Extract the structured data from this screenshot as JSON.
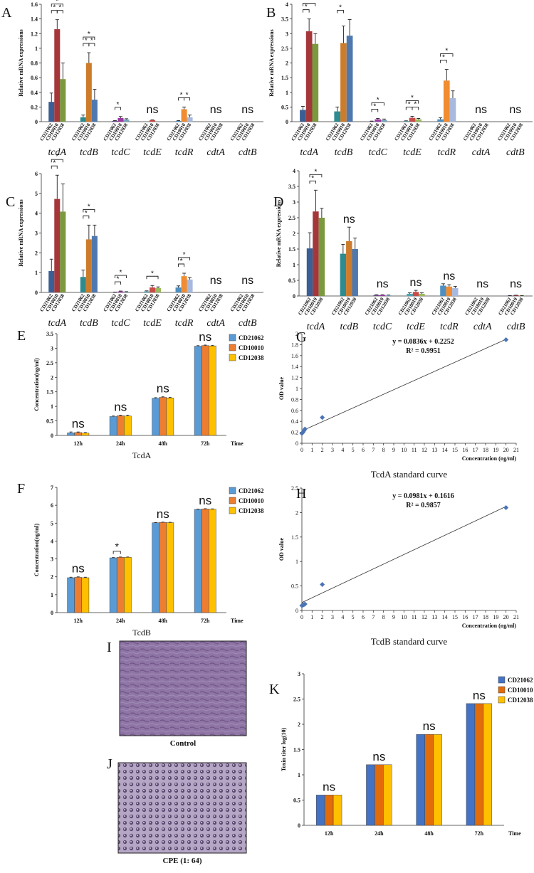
{
  "chart_data": [
    {
      "id": "A",
      "type": "bar",
      "ylabel": "Relative mRNA expressions",
      "ylim": [
        0,
        1.6
      ],
      "yticks": [
        0,
        0.2,
        0.4,
        0.6,
        0.8,
        1,
        1.2,
        1.4,
        1.6
      ],
      "categories": [
        "tcdA",
        "tcdB",
        "tcdC",
        "tcdE",
        "tcdR",
        "cdtA",
        "cdtB"
      ],
      "strains": [
        "CD21062",
        "CD10010",
        "CD12038"
      ],
      "colors": [
        [
          "#3b5f95",
          "#a5373a",
          "#7b9a40"
        ],
        [
          "#2e8c91",
          "#cd7c2c",
          "#4f79ae"
        ],
        [
          "#6d4c8c",
          "#9a3aa0",
          "#77a4bd"
        ],
        [
          "#49a3b3",
          "#c74b47",
          "#9bb85c"
        ],
        [
          "#4e8fc0",
          "#f18c30",
          "#a7b9dd"
        ],
        [
          "#3b5f95",
          "#a5373a",
          "#7b9a40"
        ],
        [
          "#3b5f95",
          "#a5373a",
          "#7b9a40"
        ]
      ],
      "values": [
        [
          0.27,
          1.26,
          0.58
        ],
        [
          0.06,
          0.8,
          0.3
        ],
        [
          0.01,
          0.05,
          0.03
        ],
        [
          0.0,
          0.02,
          0.0
        ],
        [
          0.01,
          0.17,
          0.06
        ],
        [
          0,
          0,
          0
        ],
        [
          0,
          0,
          0
        ]
      ],
      "errors": [
        [
          0.12,
          0.13,
          0.22
        ],
        [
          0.03,
          0.14,
          0.14
        ],
        [
          0.005,
          0.02,
          0.01
        ],
        [
          0,
          0.005,
          0
        ],
        [
          0.005,
          0.03,
          0.03
        ],
        [
          0,
          0,
          0
        ],
        [
          0,
          0,
          0
        ]
      ],
      "annotations": [
        "",
        "",
        "",
        "ns",
        "",
        "ns",
        "ns"
      ],
      "brackets": [
        [
          0,
          0,
          1,
          1
        ],
        [
          0,
          0,
          2,
          2
        ],
        [
          0,
          1,
          2,
          1
        ],
        [
          1,
          0,
          1,
          1
        ],
        [
          1,
          0,
          2,
          2
        ],
        [
          1,
          1,
          2,
          1
        ],
        [
          2,
          0,
          1,
          1
        ],
        [
          4,
          0,
          1,
          1
        ],
        [
          4,
          1,
          2,
          1
        ]
      ],
      "star": "*"
    },
    {
      "id": "B",
      "type": "bar",
      "ylabel": "Relative mRNA expressions",
      "ylim": [
        0,
        4
      ],
      "yticks": [
        0,
        0.5,
        1,
        1.5,
        2,
        2.5,
        3,
        3.5,
        4
      ],
      "categories": [
        "tcdA",
        "tcdB",
        "tcdC",
        "tcdE",
        "tcdR",
        "cdtA",
        "cdtB"
      ],
      "strains": [
        "CD21062",
        "CD10010",
        "CD12038"
      ],
      "colors": [
        [
          "#3b5f95",
          "#a5373a",
          "#7b9a40"
        ],
        [
          "#2e8c91",
          "#cd7c2c",
          "#4f79ae"
        ],
        [
          "#6d4c8c",
          "#9a3aa0",
          "#77a4bd"
        ],
        [
          "#49a3b3",
          "#c74b47",
          "#9bb85c"
        ],
        [
          "#4e8fc0",
          "#f18c30",
          "#a7b9dd"
        ],
        [
          "#3b5f95",
          "#a5373a",
          "#7b9a40"
        ],
        [
          "#3b5f95",
          "#a5373a",
          "#7b9a40"
        ]
      ],
      "values": [
        [
          0.4,
          3.08,
          2.65
        ],
        [
          0.35,
          2.68,
          2.93
        ],
        [
          0.01,
          0.08,
          0.06
        ],
        [
          0.02,
          0.13,
          0.08
        ],
        [
          0.08,
          1.4,
          0.8
        ],
        [
          0,
          0,
          0
        ],
        [
          0,
          0,
          0
        ]
      ],
      "errors": [
        [
          0.12,
          0.42,
          0.35
        ],
        [
          0.15,
          0.58,
          0.55
        ],
        [
          0.01,
          0.03,
          0.03
        ],
        [
          0.01,
          0.05,
          0.03
        ],
        [
          0.05,
          0.38,
          0.25
        ],
        [
          0,
          0,
          0
        ],
        [
          0,
          0,
          0
        ]
      ],
      "annotations": [
        "",
        "",
        "",
        "",
        "",
        "ns",
        "ns"
      ],
      "brackets": [
        [
          0,
          0,
          1,
          1
        ],
        [
          0,
          0,
          2,
          2
        ],
        [
          1,
          0,
          1,
          1
        ],
        [
          2,
          0,
          1,
          1
        ],
        [
          2,
          0,
          2,
          2
        ],
        [
          3,
          0,
          1,
          1
        ],
        [
          3,
          1,
          2,
          1
        ],
        [
          3,
          0,
          2,
          2
        ],
        [
          4,
          0,
          1,
          1
        ],
        [
          4,
          0,
          2,
          2
        ]
      ],
      "star": "*"
    },
    {
      "id": "C",
      "type": "bar",
      "ylabel": "Relative mRNA expressions",
      "ylim": [
        0,
        6
      ],
      "yticks": [
        0,
        1,
        2,
        3,
        4,
        5,
        6
      ],
      "categories": [
        "tcdA",
        "tcdB",
        "tcdC",
        "tcdE",
        "tcdR",
        "cdtA",
        "cdtB"
      ],
      "strains": [
        "CD21062",
        "CD10010",
        "CD12038"
      ],
      "colors": [
        [
          "#3b5f95",
          "#a5373a",
          "#7b9a40"
        ],
        [
          "#2e8c91",
          "#cd7c2c",
          "#4f79ae"
        ],
        [
          "#6d4c8c",
          "#9a3aa0",
          "#77a4bd"
        ],
        [
          "#49a3b3",
          "#c74b47",
          "#9bb85c"
        ],
        [
          "#4e8fc0",
          "#f18c30",
          "#a7b9dd"
        ],
        [
          "#3b5f95",
          "#a5373a",
          "#7b9a40"
        ],
        [
          "#3b5f95",
          "#a5373a",
          "#7b9a40"
        ]
      ],
      "values": [
        [
          1.08,
          4.72,
          4.08
        ],
        [
          0.78,
          2.68,
          2.85
        ],
        [
          0.01,
          0.05,
          0.03
        ],
        [
          0.05,
          0.25,
          0.22
        ],
        [
          0.25,
          0.82,
          0.65
        ],
        [
          0,
          0,
          0
        ],
        [
          0,
          0,
          0
        ]
      ],
      "errors": [
        [
          0.6,
          1.2,
          1.4
        ],
        [
          0.35,
          0.72,
          0.55
        ],
        [
          0.01,
          0.02,
          0.01
        ],
        [
          0.03,
          0.1,
          0.06
        ],
        [
          0.08,
          0.15,
          0.1
        ],
        [
          0,
          0,
          0
        ],
        [
          0,
          0,
          0
        ]
      ],
      "annotations": [
        "",
        "",
        "",
        "",
        "",
        "ns",
        "ns"
      ],
      "brackets": [
        [
          0,
          0,
          1,
          1
        ],
        [
          0,
          0,
          2,
          2
        ],
        [
          1,
          0,
          1,
          1
        ],
        [
          1,
          0,
          2,
          2
        ],
        [
          2,
          0,
          1,
          1
        ],
        [
          2,
          0,
          2,
          2
        ],
        [
          3,
          0,
          2,
          1
        ],
        [
          4,
          0,
          1,
          1
        ],
        [
          4,
          0,
          2,
          2
        ]
      ],
      "star": "*"
    },
    {
      "id": "D",
      "type": "bar",
      "ylabel": "Relative mRNA expressions",
      "ylim": [
        0,
        4
      ],
      "yticks": [
        0,
        0.5,
        1,
        1.5,
        2,
        2.5,
        3,
        3.5,
        4
      ],
      "categories": [
        "tcdA",
        "tcdB",
        "tcdC",
        "tcdE",
        "tcdR",
        "cdtA",
        "cdtB"
      ],
      "strains": [
        "CD21062",
        "CD10010",
        "CD12038"
      ],
      "colors": [
        [
          "#3b5f95",
          "#a5373a",
          "#7b9a40"
        ],
        [
          "#2e8c91",
          "#cd7c2c",
          "#4f79ae"
        ],
        [
          "#6d4c8c",
          "#9a3aa0",
          "#77a4bd"
        ],
        [
          "#49a3b3",
          "#c74b47",
          "#9bb85c"
        ],
        [
          "#4e8fc0",
          "#f18c30",
          "#a7b9dd"
        ],
        [
          "#3b5f95",
          "#a5373a",
          "#7b9a40"
        ],
        [
          "#3b5f95",
          "#a5373a",
          "#7b9a40"
        ]
      ],
      "values": [
        [
          1.52,
          2.7,
          2.5
        ],
        [
          1.35,
          1.75,
          1.5
        ],
        [
          0.03,
          0.03,
          0.02
        ],
        [
          0.07,
          0.13,
          0.07
        ],
        [
          0.33,
          0.3,
          0.25
        ],
        [
          0,
          0,
          0
        ],
        [
          0.01,
          0.02,
          0.01
        ]
      ],
      "errors": [
        [
          0.5,
          0.68,
          0.3
        ],
        [
          0.3,
          0.45,
          0.35
        ],
        [
          0.01,
          0.01,
          0.01
        ],
        [
          0.03,
          0.05,
          0.03
        ],
        [
          0.06,
          0.06,
          0.06
        ],
        [
          0,
          0,
          0
        ],
        [
          0.005,
          0.005,
          0.005
        ]
      ],
      "annotations": [
        "",
        "ns",
        "ns",
        "ns",
        "ns",
        "ns",
        "ns"
      ],
      "brackets": [
        [
          0,
          0,
          1,
          1
        ],
        [
          0,
          0,
          2,
          2
        ]
      ],
      "star": "*"
    },
    {
      "id": "E",
      "type": "bar",
      "ylabel": "Concentration(ng/ml)",
      "xlabel": "TcdA",
      "time_label": "Time",
      "ylim": [
        0,
        3.5
      ],
      "yticks": [
        0,
        0.5,
        1,
        1.5,
        2,
        2.5,
        3,
        3.5
      ],
      "categories": [
        "12h",
        "24h",
        "48h",
        "72h"
      ],
      "series": [
        {
          "name": "CD21062",
          "color": "#5b9bd5",
          "values": [
            0.09,
            0.65,
            1.28,
            3.07
          ]
        },
        {
          "name": "CD10010",
          "color": "#ed7d31",
          "values": [
            0.1,
            0.68,
            1.31,
            3.09
          ]
        },
        {
          "name": "CD12038",
          "color": "#ffc000",
          "values": [
            0.08,
            0.67,
            1.29,
            3.08
          ]
        }
      ],
      "errors": [
        [
          0.03,
          0.02,
          0.02,
          0.02
        ],
        [
          0.02,
          0.02,
          0.02,
          0.02
        ],
        [
          0.02,
          0.03,
          0.02,
          0.02
        ]
      ],
      "annotations": [
        "ns",
        "ns",
        "ns",
        "ns"
      ]
    },
    {
      "id": "F",
      "type": "bar",
      "ylabel": "Concentration(ng/ml)",
      "xlabel": "TcdB",
      "time_label": "Time",
      "ylim": [
        0,
        7
      ],
      "yticks": [
        0,
        1,
        2,
        3,
        4,
        5,
        6,
        7
      ],
      "categories": [
        "12h",
        "24h",
        "48h",
        "72h"
      ],
      "series": [
        {
          "name": "CD21062",
          "color": "#5b9bd5",
          "values": [
            1.95,
            3.06,
            5.02,
            5.77
          ]
        },
        {
          "name": "CD10010",
          "color": "#ed7d31",
          "values": [
            1.97,
            3.09,
            5.04,
            5.79
          ]
        },
        {
          "name": "CD12038",
          "color": "#ffc000",
          "values": [
            1.95,
            3.09,
            5.03,
            5.78
          ]
        }
      ],
      "errors": [
        [
          0.03,
          0.02,
          0.02,
          0.02
        ],
        [
          0.03,
          0.02,
          0.02,
          0.02
        ],
        [
          0.03,
          0.02,
          0.02,
          0.02
        ]
      ],
      "annotations": [
        "ns",
        "*",
        "ns",
        "ns"
      ]
    },
    {
      "id": "G",
      "type": "scatter",
      "ylabel": "OD value",
      "xlabel": "Concentration (ng/ml)",
      "caption": "TcdA standard curve",
      "equation": "y = 0.0836x + 0.2252",
      "r2": "R² = 0.9951",
      "xlim": [
        0,
        21
      ],
      "ylim": [
        0,
        2
      ],
      "yticks": [
        0,
        0.2,
        0.4,
        0.6,
        0.8,
        1,
        1.2,
        1.4,
        1.6,
        1.8,
        2
      ],
      "points": [
        [
          0,
          0.18
        ],
        [
          0.1,
          0.2
        ],
        [
          0.2,
          0.23
        ],
        [
          0.3,
          0.26
        ],
        [
          2,
          0.47
        ],
        [
          20,
          1.89
        ]
      ],
      "fit": {
        "slope": 0.0836,
        "intercept": 0.2252
      }
    },
    {
      "id": "H",
      "type": "scatter",
      "ylabel": "OD value",
      "xlabel": "Concentration (ng/ml)",
      "caption": "TcdB standard curve",
      "equation": "y = 0.0981x + 0.1616",
      "r2": "R² = 0.9857",
      "xlim": [
        0,
        21
      ],
      "ylim": [
        0,
        2.5
      ],
      "yticks": [
        0,
        0.5,
        1,
        1.5,
        2,
        2.5
      ],
      "points": [
        [
          0,
          0.1
        ],
        [
          0.1,
          0.11
        ],
        [
          0.2,
          0.12
        ],
        [
          0.3,
          0.13
        ],
        [
          2,
          0.53
        ],
        [
          20,
          2.1
        ]
      ],
      "fit": {
        "slope": 0.0981,
        "intercept": 0.1616
      }
    },
    {
      "id": "K",
      "type": "bar",
      "ylabel": "Toxin titer log(10)",
      "time_label": "Time",
      "ylim": [
        0,
        3
      ],
      "yticks": [
        0,
        0.5,
        1,
        1.5,
        2,
        2.5,
        3
      ],
      "categories": [
        "12h",
        "24h",
        "48h",
        "72h"
      ],
      "series": [
        {
          "name": "CD21062",
          "color": "#4472c4",
          "values": [
            0.6,
            1.2,
            1.8,
            2.41
          ]
        },
        {
          "name": "CD10010",
          "color": "#e36c0a",
          "values": [
            0.6,
            1.2,
            1.8,
            2.41
          ]
        },
        {
          "name": "CD12038",
          "color": "#ffc000",
          "values": [
            0.6,
            1.2,
            1.8,
            2.41
          ]
        }
      ],
      "annotations": [
        "ns",
        "ns",
        "ns",
        "ns"
      ]
    }
  ],
  "images": {
    "I": {
      "letter": "I",
      "caption": "Control"
    },
    "J": {
      "letter": "J",
      "caption": "CPE (1: 64)"
    }
  }
}
